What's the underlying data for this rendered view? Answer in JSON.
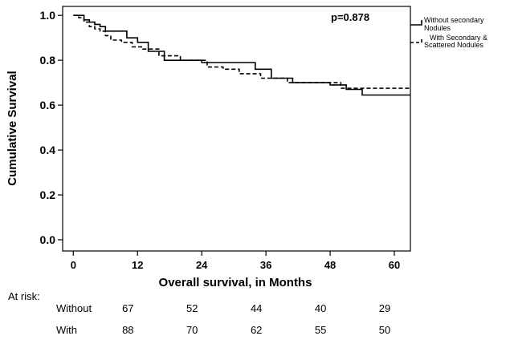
{
  "chart_data": {
    "type": "line",
    "title": "",
    "xlabel": "Overall survival, in Months",
    "ylabel": "Cumulative Survival",
    "xlim": [
      -2,
      63
    ],
    "ylim": [
      -0.05,
      1.04
    ],
    "xticks": [
      0,
      12,
      24,
      36,
      48,
      60
    ],
    "xtick_labels": [
      "0",
      "12",
      "24",
      "36",
      "48",
      "60"
    ],
    "yticks": [
      0.0,
      0.2,
      0.4,
      0.6,
      0.8,
      1.0
    ],
    "ytick_labels": [
      "0.0",
      "0.2",
      "0.4",
      "0.6",
      "0.8",
      "1.0"
    ],
    "grid": false,
    "legend_position": "right-outside-top",
    "annotation": "p=0.878",
    "series": [
      {
        "name": "Without secondary Nodules",
        "name_lines": [
          "Without secondary",
          "Nodules"
        ],
        "style": "solid",
        "color": "#000000",
        "step_x": [
          0,
          2,
          3,
          4,
          5,
          6,
          7,
          8,
          10,
          12,
          14,
          17,
          24,
          34,
          37,
          41,
          48,
          51,
          54,
          63
        ],
        "step_y": [
          1.0,
          0.98,
          0.97,
          0.96,
          0.95,
          0.93,
          0.93,
          0.93,
          0.9,
          0.88,
          0.84,
          0.8,
          0.79,
          0.76,
          0.72,
          0.7,
          0.69,
          0.67,
          0.645,
          0.645
        ]
      },
      {
        "name": "With Secondary & Scattered Nodules",
        "name_lines": [
          "With Secondary &",
          "Scattered Nodules"
        ],
        "style": "dashed",
        "color": "#000000",
        "step_x": [
          0,
          1,
          2,
          3,
          4,
          5,
          6,
          7,
          9,
          11,
          13,
          16,
          20,
          25,
          28,
          31,
          35,
          40,
          47,
          50,
          63
        ],
        "step_y": [
          1.0,
          0.99,
          0.97,
          0.95,
          0.94,
          0.93,
          0.91,
          0.89,
          0.88,
          0.86,
          0.85,
          0.82,
          0.8,
          0.77,
          0.76,
          0.74,
          0.72,
          0.7,
          0.7,
          0.675,
          0.675
        ]
      }
    ],
    "at_risk": {
      "label": "At risk:",
      "time_points": [
        0,
        12,
        24,
        36,
        48,
        60
      ],
      "rows": [
        {
          "label": "Without",
          "values": [
            "67",
            "52",
            "44",
            "40",
            "29"
          ]
        },
        {
          "label": "With",
          "values": [
            "88",
            "70",
            "62",
            "55",
            "50"
          ]
        }
      ]
    }
  }
}
